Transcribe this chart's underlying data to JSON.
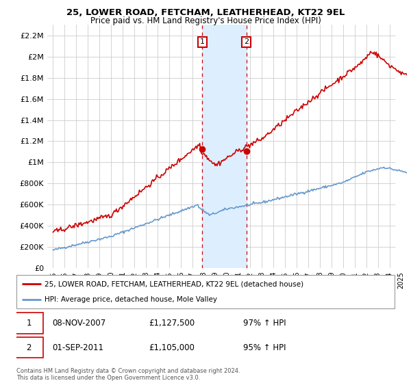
{
  "title": "25, LOWER ROAD, FETCHAM, LEATHERHEAD, KT22 9EL",
  "subtitle": "Price paid vs. HM Land Registry's House Price Index (HPI)",
  "ylabel_ticks": [
    "£0",
    "£200K",
    "£400K",
    "£600K",
    "£800K",
    "£1M",
    "£1.2M",
    "£1.4M",
    "£1.6M",
    "£1.8M",
    "£2M",
    "£2.2M"
  ],
  "ytick_values": [
    0,
    200000,
    400000,
    600000,
    800000,
    1000000,
    1200000,
    1400000,
    1600000,
    1800000,
    2000000,
    2200000
  ],
  "ylim": [
    0,
    2300000
  ],
  "xlim_start": 1994.5,
  "xlim_end": 2025.5,
  "red_line_color": "#cc0000",
  "blue_line_color": "#6699cc",
  "transaction1_x": 2007.86,
  "transaction1_y": 1127500,
  "transaction2_x": 2011.67,
  "transaction2_y": 1105000,
  "shade_x1": 2007.86,
  "shade_x2": 2011.67,
  "shade_color": "#ddeeff",
  "vline_color": "#cc0000",
  "marker_color": "#cc0000",
  "hatch_start": 2024.5,
  "legend_label1": "25, LOWER ROAD, FETCHAM, LEATHERHEAD, KT22 9EL (detached house)",
  "legend_label2": "HPI: Average price, detached house, Mole Valley",
  "table_row1": [
    "1",
    "08-NOV-2007",
    "£1,127,500",
    "97% ↑ HPI"
  ],
  "table_row2": [
    "2",
    "01-SEP-2011",
    "£1,105,000",
    "95% ↑ HPI"
  ],
  "footnote": "Contains HM Land Registry data © Crown copyright and database right 2024.\nThis data is licensed under the Open Government Licence v3.0.",
  "background_color": "#ffffff",
  "grid_color": "#cccccc"
}
